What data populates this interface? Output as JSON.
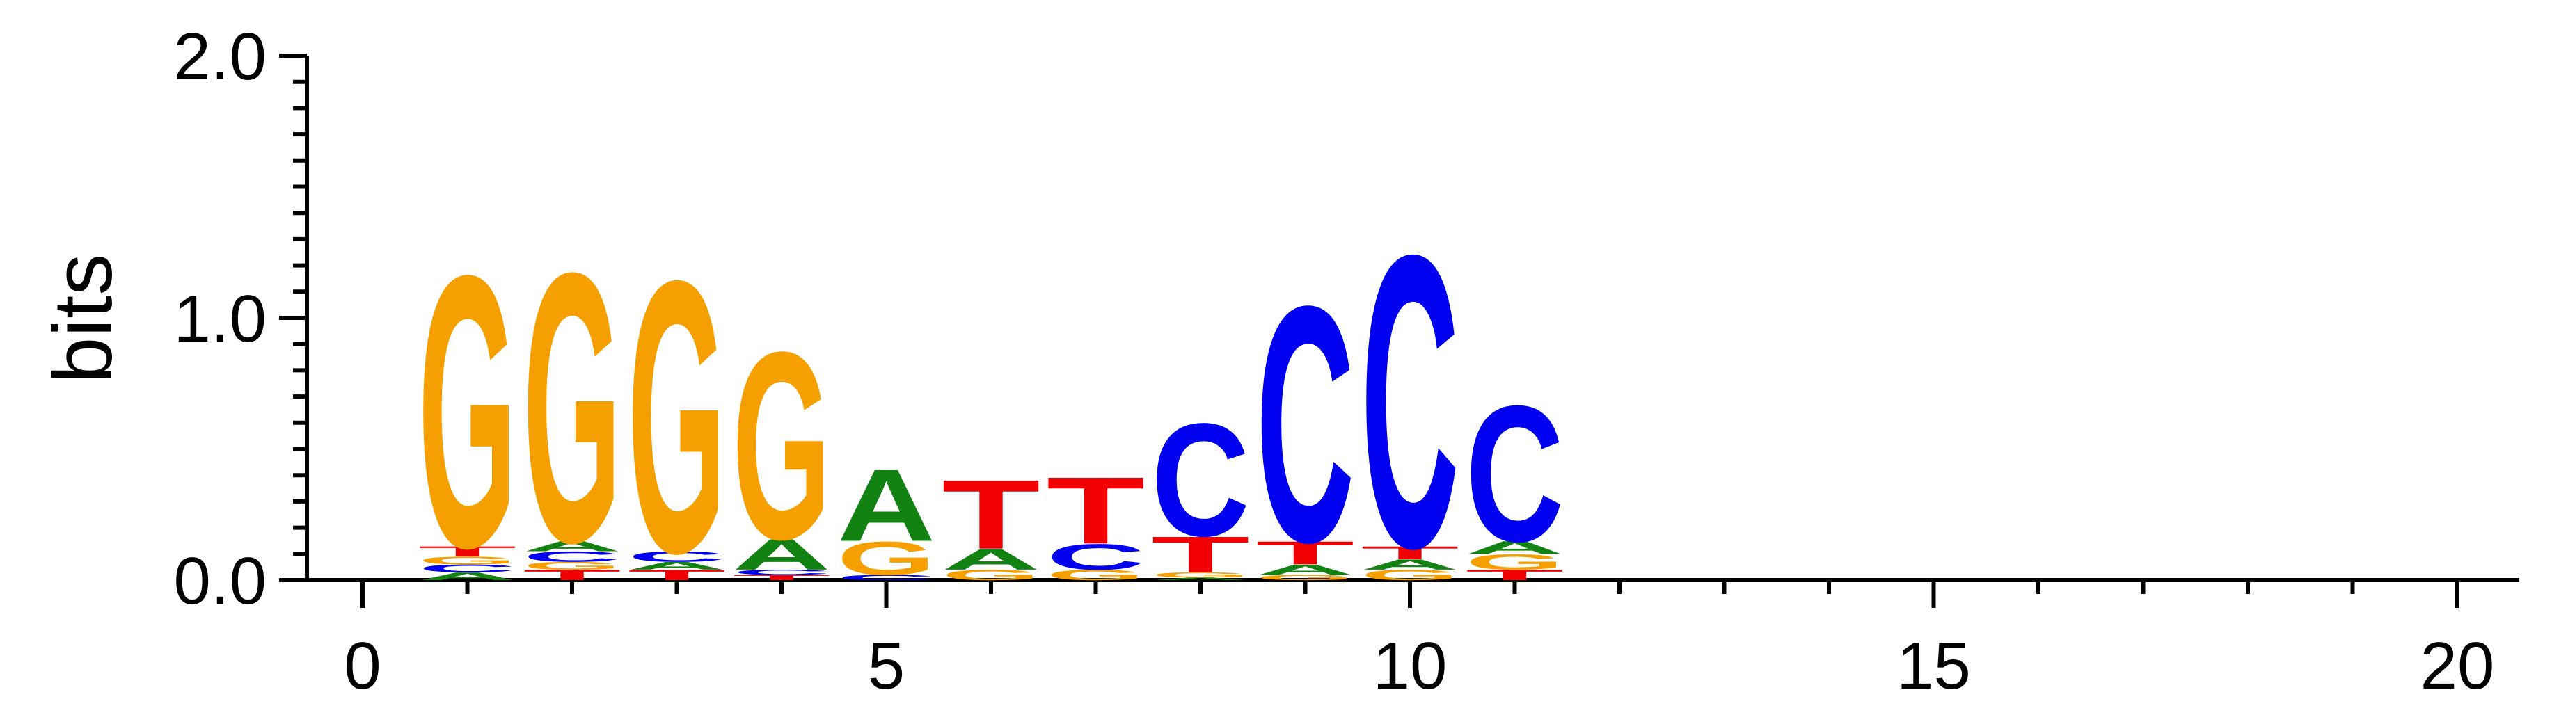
{
  "chart_data": {
    "type": "sequence-logo",
    "title": "",
    "xlabel": "",
    "ylabel": "bits",
    "xlim": [
      -0.5,
      20.5
    ],
    "ylim": [
      0,
      2.0
    ],
    "x_ticks": [
      0,
      5,
      10,
      15,
      20
    ],
    "x_tick_labels": [
      "0",
      "5",
      "10",
      "15",
      "20"
    ],
    "y_ticks": [
      0.0,
      1.0,
      2.0
    ],
    "y_tick_labels": [
      "0.0",
      "1.0",
      "2.0"
    ],
    "colors": {
      "A": "#128312",
      "C": "#0000f0",
      "G": "#f5a000",
      "T": "#f00000"
    },
    "columns": [
      {
        "position": 1,
        "letters": [
          {
            "base": "A",
            "bits": 0.03
          },
          {
            "base": "C",
            "bits": 0.03
          },
          {
            "base": "G",
            "bits": 0.03
          },
          {
            "base": "T",
            "bits": 0.04
          },
          {
            "base": "G",
            "bits": 1.06
          }
        ]
      },
      {
        "position": 2,
        "letters": [
          {
            "base": "T",
            "bits": 0.04
          },
          {
            "base": "G",
            "bits": 0.03
          },
          {
            "base": "C",
            "bits": 0.04
          },
          {
            "base": "A",
            "bits": 0.04
          },
          {
            "base": "G",
            "bits": 1.05
          }
        ]
      },
      {
        "position": 3,
        "letters": [
          {
            "base": "T",
            "bits": 0.04
          },
          {
            "base": "A",
            "bits": 0.03
          },
          {
            "base": "C",
            "bits": 0.04
          },
          {
            "base": "G",
            "bits": 1.06
          }
        ]
      },
      {
        "position": 4,
        "letters": [
          {
            "base": "T",
            "bits": 0.02
          },
          {
            "base": "C",
            "bits": 0.02
          },
          {
            "base": "A",
            "bits": 0.12
          },
          {
            "base": "G",
            "bits": 0.73
          }
        ]
      },
      {
        "position": 5,
        "letters": [
          {
            "base": "C",
            "bits": 0.02
          },
          {
            "base": "G",
            "bits": 0.13
          },
          {
            "base": "A",
            "bits": 0.28
          }
        ]
      },
      {
        "position": 6,
        "letters": [
          {
            "base": "G",
            "bits": 0.04
          },
          {
            "base": "A",
            "bits": 0.08
          },
          {
            "base": "T",
            "bits": 0.27
          }
        ]
      },
      {
        "position": 7,
        "letters": [
          {
            "base": "G",
            "bits": 0.04
          },
          {
            "base": "C",
            "bits": 0.1
          },
          {
            "base": "T",
            "bits": 0.26
          }
        ]
      },
      {
        "position": 8,
        "letters": [
          {
            "base": "A",
            "bits": 0.01
          },
          {
            "base": "G",
            "bits": 0.02
          },
          {
            "base": "T",
            "bits": 0.14
          },
          {
            "base": "C",
            "bits": 0.44
          }
        ]
      },
      {
        "position": 9,
        "letters": [
          {
            "base": "G",
            "bits": 0.02
          },
          {
            "base": "A",
            "bits": 0.04
          },
          {
            "base": "T",
            "bits": 0.09
          },
          {
            "base": "C",
            "bits": 0.92
          }
        ]
      },
      {
        "position": 10,
        "letters": [
          {
            "base": "G",
            "bits": 0.04
          },
          {
            "base": "A",
            "bits": 0.04
          },
          {
            "base": "T",
            "bits": 0.05
          },
          {
            "base": "C",
            "bits": 1.14
          }
        ]
      },
      {
        "position": 11,
        "letters": [
          {
            "base": "T",
            "bits": 0.04
          },
          {
            "base": "G",
            "bits": 0.06
          },
          {
            "base": "A",
            "bits": 0.05
          },
          {
            "base": "C",
            "bits": 0.53
          }
        ]
      }
    ]
  }
}
